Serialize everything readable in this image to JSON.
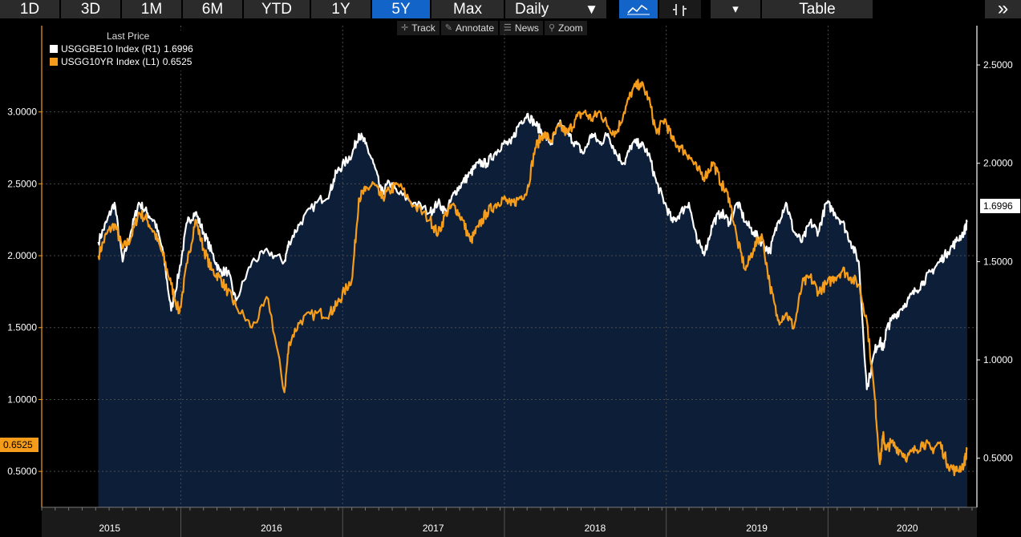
{
  "toolbar": {
    "ranges": [
      "1D",
      "3D",
      "1M",
      "6M",
      "YTD",
      "1Y",
      "5Y",
      "Max"
    ],
    "active_range": "5Y",
    "frequency": "Daily",
    "frequency_caret": "▼",
    "chart_type_icons": [
      "line-chart-icon",
      "bar-chart-icon"
    ],
    "menu_caret": "▾",
    "table_label": "Table",
    "more": "»"
  },
  "subtools": {
    "track": "Track",
    "annotate": "Annotate",
    "news": "News",
    "zoom": "Zoom"
  },
  "legend": {
    "header": "Last Price",
    "items": [
      {
        "name": "USGGBE10 Index  (R1)",
        "value": "1.6996",
        "color": "#ffffff"
      },
      {
        "name": "USGG10YR Index  (L1)",
        "value": "0.6525",
        "color": "#f59c1a"
      }
    ]
  },
  "badges": {
    "left_value": "0.6525",
    "right_value": "1.6996"
  },
  "colors": {
    "area_fill": "#0d1f38",
    "breakeven_line": "#ffffff",
    "yield_line": "#f59c1a",
    "active_button": "#1264c9"
  },
  "chart_data": {
    "type": "line",
    "x_labels": [
      "2015",
      "2016",
      "2017",
      "2018",
      "2019",
      "2020"
    ],
    "left_axis": {
      "ticks": [
        "3.0000",
        "2.5000",
        "2.0000",
        "1.5000",
        "1.0000",
        "0.5000"
      ],
      "range": [
        0.25,
        3.6
      ]
    },
    "right_axis": {
      "ticks": [
        "2.5000",
        "2.0000",
        "1.5000",
        "1.0000",
        "0.5000"
      ],
      "range": [
        0.25,
        2.7
      ]
    },
    "grid": true,
    "series": [
      {
        "name": "USGG10YR Index",
        "axis": "left",
        "last": 0.6525,
        "x": [
          2015.35,
          2015.4,
          2015.45,
          2015.5,
          2015.55,
          2015.6,
          2015.65,
          2015.7,
          2015.75,
          2015.8,
          2015.85,
          2015.9,
          2015.95,
          2016.0,
          2016.05,
          2016.1,
          2016.15,
          2016.2,
          2016.3,
          2016.4,
          2016.5,
          2016.53,
          2016.6,
          2016.7,
          2016.78,
          2016.82,
          2016.87,
          2016.92,
          2016.96,
          2017.0,
          2017.05,
          2017.1,
          2017.15,
          2017.2,
          2017.3,
          2017.4,
          2017.45,
          2017.5,
          2017.55,
          2017.6,
          2017.65,
          2017.7,
          2017.75,
          2017.8,
          2017.85,
          2017.9,
          2017.95,
          2018.0,
          2018.05,
          2018.1,
          2018.15,
          2018.2,
          2018.25,
          2018.3,
          2018.35,
          2018.4,
          2018.45,
          2018.5,
          2018.55,
          2018.6,
          2018.65,
          2018.7,
          2018.75,
          2018.8,
          2018.85,
          2018.9,
          2018.95,
          2019.0,
          2019.05,
          2019.1,
          2019.15,
          2019.2,
          2019.25,
          2019.3,
          2019.35,
          2019.4,
          2019.45,
          2019.5,
          2019.55,
          2019.6,
          2019.65,
          2019.7,
          2019.75,
          2019.8,
          2019.85,
          2019.9,
          2019.95,
          2020.0,
          2020.05,
          2020.1,
          2020.15,
          2020.18,
          2020.2,
          2020.22,
          2020.25,
          2020.3,
          2020.35,
          2020.4,
          2020.45,
          2020.5,
          2020.55,
          2020.6,
          2020.65,
          2020.7,
          2020.72
        ],
        "y": [
          2.0,
          2.15,
          2.22,
          2.05,
          2.12,
          2.3,
          2.25,
          2.15,
          2.0,
          1.8,
          1.6,
          1.95,
          2.25,
          2.05,
          1.9,
          1.85,
          1.75,
          1.65,
          1.5,
          1.7,
          1.05,
          1.4,
          1.55,
          1.6,
          1.6,
          1.65,
          1.75,
          1.85,
          2.4,
          2.45,
          2.5,
          2.4,
          2.45,
          2.5,
          2.35,
          2.25,
          2.15,
          2.3,
          2.35,
          2.25,
          2.1,
          2.2,
          2.3,
          2.35,
          2.4,
          2.35,
          2.4,
          2.45,
          2.75,
          2.85,
          2.8,
          2.9,
          2.85,
          2.95,
          3.0,
          2.95,
          3.0,
          2.9,
          2.85,
          3.0,
          3.15,
          3.2,
          3.1,
          2.85,
          2.95,
          2.8,
          2.75,
          2.7,
          2.6,
          2.55,
          2.65,
          2.5,
          2.4,
          2.1,
          1.9,
          2.05,
          2.15,
          1.8,
          1.55,
          1.6,
          1.5,
          1.8,
          1.85,
          1.75,
          1.8,
          1.85,
          1.9,
          1.85,
          1.8,
          1.55,
          1.0,
          0.55,
          0.75,
          0.65,
          0.7,
          0.65,
          0.6,
          0.65,
          0.7,
          0.65,
          0.7,
          0.55,
          0.5,
          0.55,
          0.6525
        ]
      },
      {
        "name": "USGGBE10 Index",
        "axis": "right",
        "last": 1.6996,
        "x": [
          2015.35,
          2015.4,
          2015.45,
          2015.5,
          2015.55,
          2015.6,
          2015.65,
          2015.7,
          2015.75,
          2015.8,
          2015.85,
          2015.9,
          2015.95,
          2016.0,
          2016.05,
          2016.1,
          2016.15,
          2016.2,
          2016.3,
          2016.4,
          2016.5,
          2016.53,
          2016.6,
          2016.7,
          2016.78,
          2016.82,
          2016.87,
          2016.92,
          2016.96,
          2017.0,
          2017.05,
          2017.1,
          2017.15,
          2017.2,
          2017.3,
          2017.4,
          2017.45,
          2017.5,
          2017.55,
          2017.6,
          2017.65,
          2017.7,
          2017.75,
          2017.8,
          2017.85,
          2017.9,
          2017.95,
          2018.0,
          2018.05,
          2018.1,
          2018.15,
          2018.2,
          2018.25,
          2018.3,
          2018.35,
          2018.4,
          2018.45,
          2018.5,
          2018.55,
          2018.6,
          2018.65,
          2018.7,
          2018.75,
          2018.8,
          2018.85,
          2018.9,
          2018.95,
          2019.0,
          2019.05,
          2019.1,
          2019.15,
          2019.2,
          2019.25,
          2019.3,
          2019.35,
          2019.4,
          2019.45,
          2019.5,
          2019.55,
          2019.6,
          2019.65,
          2019.7,
          2019.75,
          2019.8,
          2019.85,
          2019.9,
          2019.95,
          2020.0,
          2020.05,
          2020.1,
          2020.15,
          2020.18,
          2020.2,
          2020.22,
          2020.25,
          2020.3,
          2020.35,
          2020.4,
          2020.45,
          2020.5,
          2020.55,
          2020.6,
          2020.65,
          2020.7,
          2020.72
        ],
        "y": [
          1.6,
          1.7,
          1.8,
          1.5,
          1.65,
          1.8,
          1.75,
          1.7,
          1.55,
          1.25,
          1.45,
          1.7,
          1.75,
          1.65,
          1.55,
          1.45,
          1.45,
          1.3,
          1.5,
          1.55,
          1.5,
          1.6,
          1.7,
          1.8,
          1.85,
          1.95,
          2.0,
          2.05,
          2.15,
          2.1,
          2.0,
          1.85,
          1.9,
          1.85,
          1.8,
          1.75,
          1.8,
          1.75,
          1.85,
          1.9,
          1.95,
          2.0,
          2.0,
          2.05,
          2.1,
          2.1,
          2.2,
          2.25,
          2.2,
          2.15,
          2.1,
          2.2,
          2.15,
          2.1,
          2.05,
          2.15,
          2.1,
          2.15,
          2.05,
          2.0,
          2.1,
          2.1,
          2.05,
          1.9,
          1.8,
          1.7,
          1.75,
          1.8,
          1.6,
          1.55,
          1.7,
          1.75,
          1.7,
          1.8,
          1.7,
          1.65,
          1.6,
          1.55,
          1.7,
          1.8,
          1.65,
          1.6,
          1.7,
          1.65,
          1.8,
          1.75,
          1.7,
          1.6,
          1.5,
          0.85,
          1.05,
          1.1,
          1.05,
          1.15,
          1.2,
          1.25,
          1.3,
          1.35,
          1.4,
          1.45,
          1.5,
          1.55,
          1.6,
          1.65,
          1.6996
        ]
      }
    ]
  }
}
